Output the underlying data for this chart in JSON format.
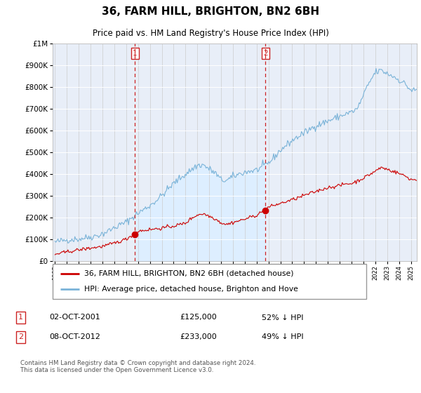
{
  "title": "36, FARM HILL, BRIGHTON, BN2 6BH",
  "subtitle": "Price paid vs. HM Land Registry's House Price Index (HPI)",
  "hpi_label": "HPI: Average price, detached house, Brighton and Hove",
  "price_label": "36, FARM HILL, BRIGHTON, BN2 6BH (detached house)",
  "hpi_color": "#7ab3d8",
  "price_color": "#cc0000",
  "vline_color": "#cc2222",
  "shade_color": "#ddeeff",
  "background_color": "#ffffff",
  "plot_bg_color": "#e8eef8",
  "ylim": [
    0,
    1000000
  ],
  "yticks": [
    0,
    100000,
    200000,
    300000,
    400000,
    500000,
    600000,
    700000,
    800000,
    900000,
    1000000
  ],
  "xlim_start": 1994.8,
  "xlim_end": 2025.5,
  "sale1_x": 2001.75,
  "sale1_y": 125000,
  "sale1_label": "1",
  "sale1_date": "02-OCT-2001",
  "sale1_price": "£125,000",
  "sale1_hpi": "52% ↓ HPI",
  "sale2_x": 2012.75,
  "sale2_y": 233000,
  "sale2_label": "2",
  "sale2_date": "08-OCT-2012",
  "sale2_price": "£233,000",
  "sale2_hpi": "49% ↓ HPI",
  "footer": "Contains HM Land Registry data © Crown copyright and database right 2024.\nThis data is licensed under the Open Government Licence v3.0."
}
